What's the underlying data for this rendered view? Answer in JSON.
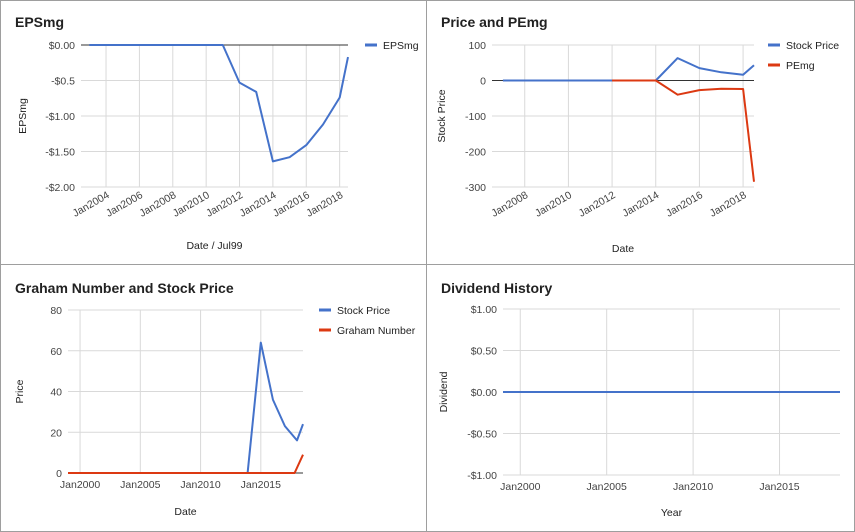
{
  "colors": {
    "blue": "#4472ca",
    "red": "#dc3912",
    "grid": "#d9d9d9",
    "baseline": "#333333"
  },
  "chart_data": [
    {
      "type": "line",
      "title": "EPSmg",
      "xlabel": "Date / Jul99",
      "ylabel": "EPSmg",
      "xlim": [
        2002.5,
        2018.5
      ],
      "ylim": [
        -2.0,
        0.0
      ],
      "x_ticks": [
        2004,
        2006,
        2008,
        2010,
        2012,
        2014,
        2016,
        2018
      ],
      "x_tick_labels": [
        "Jan2004",
        "Jan2006",
        "Jan2008",
        "Jan2010",
        "Jan2012",
        "Jan2014",
        "Jan2016",
        "Jan2018"
      ],
      "y_ticks": [
        0,
        -0.5,
        -1.0,
        -1.5,
        -2.0
      ],
      "y_tick_labels": [
        "$0.00",
        "-$0.5",
        "-$1.00",
        "-$1.50",
        "-$2.00"
      ],
      "legend_position": "right",
      "series": [
        {
          "name": "EPSmg",
          "color": "#4472ca",
          "x": [
            2003,
            2011,
            2012,
            2013,
            2014,
            2015,
            2016,
            2017,
            2018,
            2018.5
          ],
          "y": [
            0,
            0,
            -0.53,
            -0.66,
            -1.64,
            -1.58,
            -1.41,
            -1.12,
            -0.74,
            -0.17
          ]
        }
      ]
    },
    {
      "type": "line",
      "title": "Price and PEmg",
      "xlabel": "Date",
      "ylabel": "Stock Price",
      "xlim": [
        2006.5,
        2018.5
      ],
      "ylim": [
        -300,
        100
      ],
      "x_ticks": [
        2008,
        2010,
        2012,
        2014,
        2016,
        2018
      ],
      "x_tick_labels": [
        "Jan2008",
        "Jan2010",
        "Jan2012",
        "Jan2014",
        "Jan2016",
        "Jan2018"
      ],
      "y_ticks": [
        100,
        0,
        -100,
        -200,
        -300
      ],
      "y_tick_labels": [
        "100",
        "0",
        "-100",
        "-200",
        "-300"
      ],
      "legend_position": "right",
      "series": [
        {
          "name": "Stock Price",
          "color": "#4472ca",
          "x": [
            2007,
            2014,
            2015,
            2016,
            2017,
            2018,
            2018.5
          ],
          "y": [
            0,
            0,
            63,
            35,
            23,
            16,
            43
          ]
        },
        {
          "name": "PEmg",
          "color": "#dc3912",
          "x": [
            2012,
            2014,
            2015,
            2016,
            2017,
            2018,
            2018.5
          ],
          "y": [
            0,
            0,
            -40,
            -27,
            -23,
            -24,
            -285
          ]
        }
      ]
    },
    {
      "type": "line",
      "title": "Graham Number and Stock Price",
      "xlabel": "Date",
      "ylabel": "Price",
      "xlim": [
        1999,
        2018.5
      ],
      "ylim": [
        0,
        80
      ],
      "x_ticks": [
        2000,
        2005,
        2010,
        2015
      ],
      "x_tick_labels": [
        "Jan2000",
        "Jan2005",
        "Jan2010",
        "Jan2015"
      ],
      "y_ticks": [
        80,
        60,
        40,
        20,
        0
      ],
      "y_tick_labels": [
        "80",
        "60",
        "40",
        "20",
        "0"
      ],
      "legend_position": "right",
      "series": [
        {
          "name": "Stock Price",
          "color": "#4472ca",
          "x": [
            1999,
            2013.9,
            2015.0,
            2016.0,
            2017.0,
            2018.0,
            2018.5
          ],
          "y": [
            0,
            0,
            64,
            36,
            23,
            16,
            24
          ]
        },
        {
          "name": "Graham Number",
          "color": "#dc3912",
          "x": [
            1999,
            2017.8,
            2018.5
          ],
          "y": [
            0,
            0,
            9
          ]
        }
      ]
    },
    {
      "type": "line",
      "title": "Dividend History",
      "xlabel": "Year",
      "ylabel": "Dividend",
      "xlim": [
        1999,
        2018.5
      ],
      "ylim": [
        -1.0,
        1.0
      ],
      "x_ticks": [
        2000,
        2005,
        2010,
        2015
      ],
      "x_tick_labels": [
        "Jan2000",
        "Jan2005",
        "Jan2010",
        "Jan2015"
      ],
      "y_ticks": [
        1.0,
        0.5,
        0.0,
        -0.5,
        -1.0
      ],
      "y_tick_labels": [
        "$1.00",
        "$0.50",
        "$0.00",
        "-$0.50",
        "-$1.00"
      ],
      "series": [
        {
          "color": "#4472ca",
          "x": [
            1999,
            2018.5
          ],
          "y": [
            0,
            0
          ]
        }
      ]
    }
  ]
}
